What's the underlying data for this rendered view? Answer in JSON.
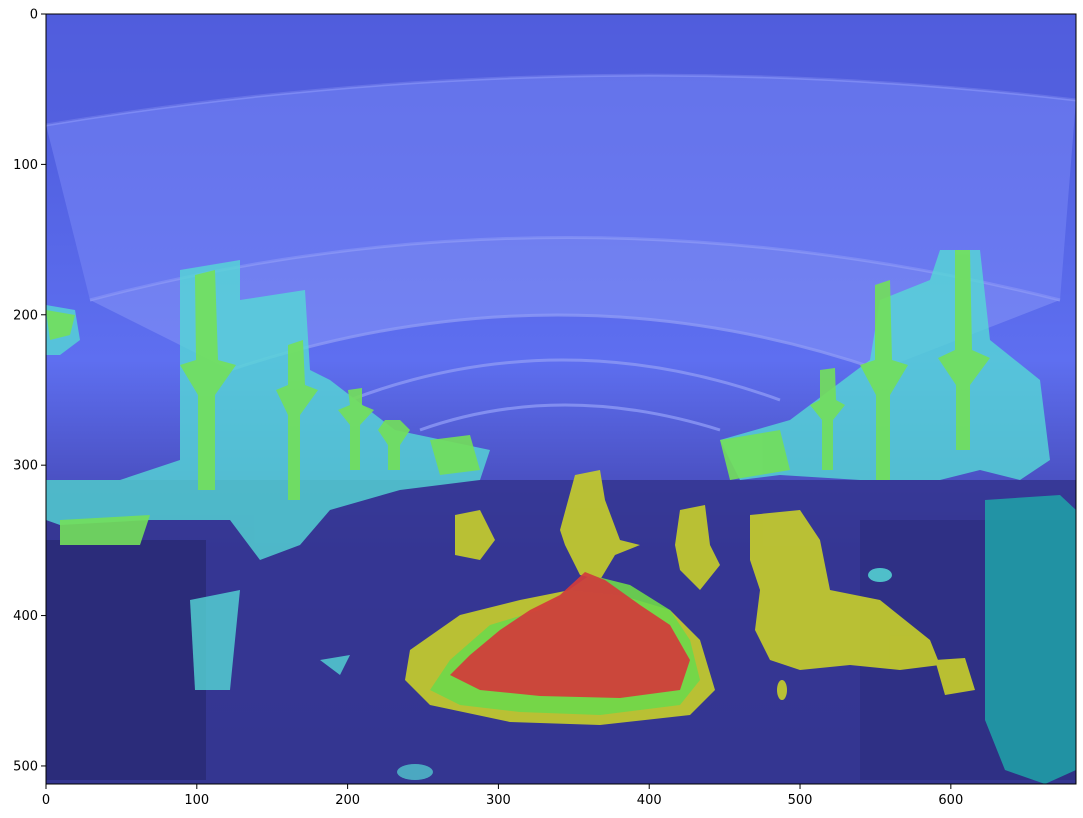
{
  "figure": {
    "kind": "heatmap overlay on photograph (airport terminal interior with tent-like roof)",
    "colormap": "jet",
    "x_ticks": [
      "0",
      "100",
      "200",
      "300",
      "400",
      "500",
      "600"
    ],
    "y_ticks": [
      "0",
      "100",
      "200",
      "300",
      "400",
      "500"
    ],
    "x_range": [
      0,
      683
    ],
    "y_range": [
      0,
      512
    ]
  },
  "chart_data": {
    "type": "heatmap",
    "title": "",
    "xlabel": "",
    "ylabel": "",
    "xlim": [
      0,
      683
    ],
    "ylim": [
      512,
      0
    ],
    "x_tick_values": [
      0,
      100,
      200,
      300,
      400,
      500,
      600
    ],
    "y_tick_values": [
      0,
      100,
      200,
      300,
      400,
      500
    ],
    "colors": {
      "low": "#3a46c8",
      "mid_low": "#4fd6d0",
      "mid": "#6ed84a",
      "mid_high": "#c8cf2a",
      "high": "#d23b3b"
    }
  }
}
